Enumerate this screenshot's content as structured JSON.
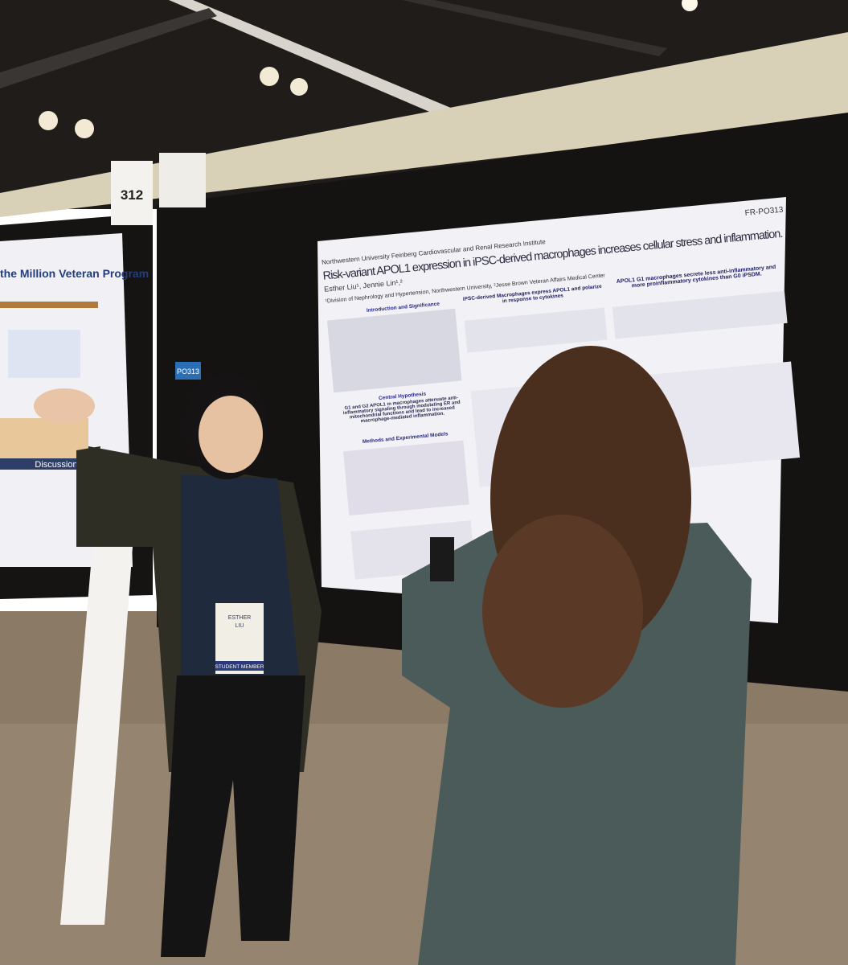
{
  "booth_number": "312",
  "poster_sign": "PO313",
  "left_poster": {
    "title": "the Million Veteran Program",
    "section": "Discussion"
  },
  "poster": {
    "id": "FR-PO313",
    "institute": "Northwestern University Feinberg Cardiovascular and Renal Research Institute",
    "title": "Risk-variant APOL1 expression in iPSC-derived macrophages increases cellular stress and inflammation.",
    "authors": "Esther Liu¹, Jennie Lin¹,²",
    "affiliations": "¹Division of Nephrology and Hypertension, Northwestern University, ²Jesse Brown Veteran Affairs Medical Center",
    "sections": [
      "Introduction and Significance",
      "Central Hypothesis",
      "Methods and Experimental Models"
    ],
    "hypothesis": "G1 and G2 APOL1 in macrophages attenuate anti-inflammatory signaling through modulating ER and mitochondrial functions and lead to increased macrophage-mediated inflammation.",
    "middle_heading": "iPSC-derived Macrophages express APOL1 and polarize in response to cytokines",
    "right_heading": "APOL1 G1 macrophages secrete less anti-inflammatory and more proinflammatory cytokines than G0 iPSDM."
  },
  "badge": {
    "name_line1": "ESTHER",
    "name_line2": "LIU",
    "membership": "STUDENT MEMBER"
  }
}
